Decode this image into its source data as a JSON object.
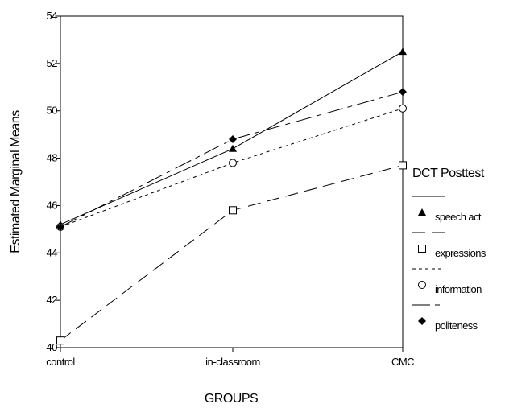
{
  "chart_data": {
    "type": "line",
    "categories": [
      "control",
      "in-classroom",
      "CMC"
    ],
    "xlabel": "GROUPS",
    "ylabel": "Estimated Marginal Means",
    "ylim": [
      40,
      54
    ],
    "yticks": [
      40,
      42,
      44,
      46,
      48,
      50,
      52,
      54
    ],
    "grid": false,
    "legend_title": "DCT Posttest",
    "legend_position": "right",
    "series": [
      {
        "name": "speech act",
        "values": [
          45.2,
          48.4,
          52.5
        ],
        "line_style": "solid",
        "marker": "triangle-filled"
      },
      {
        "name": "expressions",
        "values": [
          40.3,
          45.8,
          47.7
        ],
        "line_style": "long-dash",
        "marker": "square-open"
      },
      {
        "name": "information",
        "values": [
          45.1,
          47.8,
          50.1
        ],
        "line_style": "short-dash",
        "marker": "circle-open"
      },
      {
        "name": "politeness",
        "values": [
          45.1,
          48.8,
          50.8
        ],
        "line_style": "dash-dot",
        "marker": "diamond-filled"
      }
    ]
  }
}
